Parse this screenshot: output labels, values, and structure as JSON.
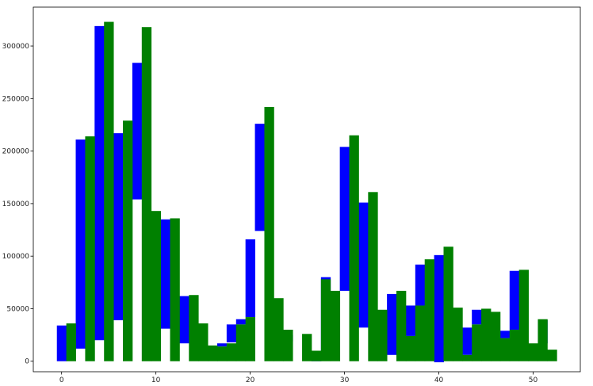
{
  "chart_data": {
    "type": "bar",
    "title": "",
    "xlabel": "",
    "ylabel": "",
    "xlim": [
      -3,
      55
    ],
    "ylim": [
      -10000,
      337000
    ],
    "grid": false,
    "colors": {
      "blue": "#0000ff",
      "green": "#008000"
    },
    "x_ticks": [
      0,
      10,
      20,
      30,
      40,
      50
    ],
    "x_tick_labels": [
      "0",
      "10",
      "20",
      "30",
      "40",
      "50"
    ],
    "y_ticks": [
      0,
      50000,
      100000,
      150000,
      200000,
      250000,
      300000
    ],
    "y_tick_labels": [
      "0",
      "50000",
      "100000",
      "150000",
      "200000",
      "250000",
      "300000"
    ],
    "bar_width": 1,
    "series": [
      {
        "color": "blue",
        "x": [
          0,
          2,
          4,
          6,
          8,
          11,
          13,
          17,
          18,
          19,
          20,
          21,
          24,
          27,
          28,
          30,
          32,
          35,
          37,
          38,
          40,
          43,
          44,
          47,
          48,
          51
        ],
        "values": [
          34000,
          211000,
          319000,
          217000,
          284000,
          135000,
          62000,
          17000,
          35000,
          40000,
          116000,
          226000,
          25000,
          9000,
          80000,
          204000,
          151000,
          64000,
          53000,
          92000,
          101000,
          32000,
          49000,
          29000,
          86000,
          39000
        ],
        "bases": [
          0,
          12000,
          20000,
          39000,
          154000,
          31000,
          17000,
          14000,
          18000,
          35000,
          42000,
          124000,
          19000,
          0,
          10000,
          67000,
          32000,
          6000,
          24000,
          53000,
          -1000,
          6000,
          35000,
          22000,
          30000,
          17000
        ]
      },
      {
        "color": "green",
        "x": [
          1,
          3,
          5,
          7,
          9,
          10,
          12,
          14,
          15,
          16,
          17,
          18,
          19,
          20,
          22,
          23,
          24,
          26,
          27,
          28,
          29,
          31,
          33,
          34,
          36,
          37,
          38,
          39,
          41,
          42,
          43,
          44,
          45,
          46,
          47,
          48,
          49,
          50,
          51,
          52
        ],
        "values": [
          36000,
          214000,
          323000,
          229000,
          318000,
          143000,
          136000,
          63000,
          36000,
          15000,
          14000,
          17000,
          35000,
          42000,
          242000,
          60000,
          30000,
          26000,
          10000,
          78000,
          67000,
          215000,
          161000,
          49000,
          67000,
          24000,
          53000,
          97000,
          109000,
          51000,
          6000,
          35000,
          50000,
          47000,
          22000,
          30000,
          87000,
          17000,
          40000,
          11000
        ]
      }
    ]
  }
}
